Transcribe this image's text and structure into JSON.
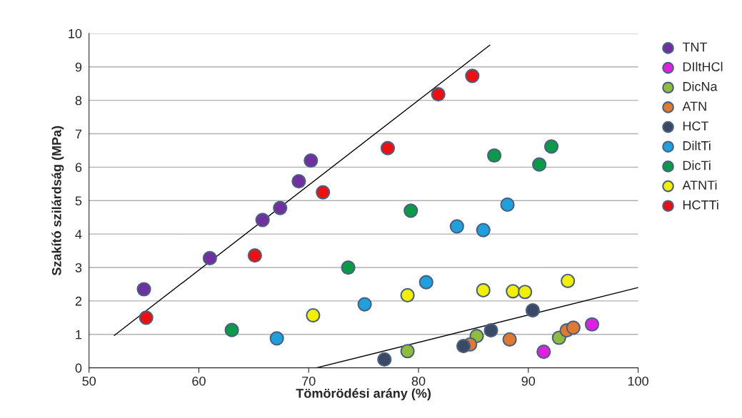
{
  "chart_data": {
    "type": "scatter",
    "xlabel": "Tömörödési arány (%)",
    "ylabel": "Szakító szilárdság (MPa)",
    "xlim": [
      50,
      100
    ],
    "xticks": [
      50,
      60,
      70,
      80,
      90,
      100
    ],
    "ylim": [
      0,
      10
    ],
    "yticks": [
      0,
      1,
      2,
      3,
      4,
      5,
      6,
      7,
      8,
      9,
      10
    ],
    "grid": "y",
    "legend": "right",
    "marker": "circle",
    "series": [
      {
        "name": "TNT",
        "color": "#7030a0",
        "x": [
          55,
          61,
          65.8,
          67.4,
          69.1,
          70.2
        ],
        "values": [
          2.35,
          3.28,
          4.42,
          4.78,
          5.58,
          6.2
        ]
      },
      {
        "name": "DIltHCl",
        "color": "#e020e0",
        "x": [
          91.4,
          95.8
        ],
        "values": [
          0.48,
          1.3
        ]
      },
      {
        "name": "DicNa",
        "color": "#8fbc3c",
        "x": [
          79,
          85.3,
          92.8
        ],
        "values": [
          0.5,
          0.95,
          0.9
        ]
      },
      {
        "name": "ATN",
        "color": "#e07a30",
        "x": [
          84.7,
          88.3,
          93.5,
          94.1
        ],
        "values": [
          0.7,
          0.85,
          1.12,
          1.2
        ]
      },
      {
        "name": "HCT",
        "color": "#3a4a66",
        "x": [
          76.9,
          84.1,
          86.6,
          90.4
        ],
        "values": [
          0.25,
          0.65,
          1.12,
          1.72
        ]
      },
      {
        "name": "DiltTi",
        "color": "#1ea0dc",
        "x": [
          67.1,
          75.1,
          80.7,
          83.5,
          85.9,
          88.1
        ],
        "values": [
          0.88,
          1.9,
          2.56,
          4.23,
          4.12,
          4.88
        ]
      },
      {
        "name": "DicTi",
        "color": "#0a9a48",
        "x": [
          63,
          73.6,
          79.3,
          86.9,
          91,
          92.1
        ],
        "values": [
          1.13,
          3.0,
          4.7,
          6.35,
          6.08,
          6.62
        ]
      },
      {
        "name": "ATNTi",
        "color": "#f2f000",
        "x": [
          70.4,
          79,
          85.9,
          88.6,
          89.7,
          93.6
        ],
        "values": [
          1.57,
          2.17,
          2.32,
          2.29,
          2.27,
          2.6
        ]
      },
      {
        "name": "HCTTi",
        "color": "#ee1010",
        "x": [
          55.2,
          65.1,
          71.3,
          77.2,
          81.8,
          84.9
        ],
        "values": [
          1.5,
          3.36,
          5.25,
          6.57,
          8.18,
          8.73
        ]
      },
      {
        "type": "line",
        "color": "#000000",
        "marker": "none",
        "x": [
          52.3,
          86.5
        ],
        "values": [
          0.97,
          9.65
        ]
      },
      {
        "type": "line",
        "color": "#000000",
        "marker": "none",
        "x": [
          70.7,
          100
        ],
        "values": [
          0,
          2.4
        ]
      }
    ]
  }
}
